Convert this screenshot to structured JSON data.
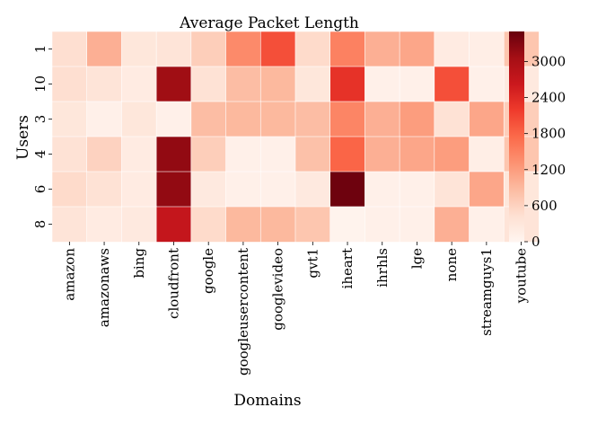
{
  "chart_data": {
    "type": "heatmap",
    "title": "Average Packet Length",
    "xlabel": "Domains",
    "ylabel": "Users",
    "x_categories": [
      "amazon",
      "amazonaws",
      "bing",
      "cloudfront",
      "google",
      "googleusercontent",
      "googlevideo",
      "gvt1",
      "iheart",
      "ihrhls",
      "lge",
      "none",
      "streamguys1",
      "youtube"
    ],
    "y_categories": [
      "1",
      "10",
      "3",
      "4",
      "6",
      "8"
    ],
    "values": [
      [
        450,
        1000,
        300,
        350,
        650,
        1400,
        2000,
        500,
        1500,
        1000,
        1100,
        200,
        150,
        750
      ],
      [
        450,
        350,
        200,
        3100,
        400,
        850,
        900,
        300,
        2300,
        100,
        100,
        2000,
        100,
        250
      ],
      [
        300,
        100,
        300,
        100,
        850,
        900,
        900,
        850,
        1450,
        1000,
        1200,
        400,
        1100,
        650
      ],
      [
        400,
        600,
        200,
        3200,
        650,
        100,
        100,
        800,
        1800,
        1000,
        1100,
        1200,
        150,
        750
      ],
      [
        500,
        400,
        200,
        3200,
        250,
        100,
        100,
        250,
        3450,
        100,
        100,
        350,
        1100,
        300
      ],
      [
        350,
        200,
        250,
        2700,
        500,
        900,
        900,
        750,
        50,
        100,
        100,
        1000,
        100,
        350
      ]
    ],
    "colorbar": {
      "min": 0,
      "max": 3500,
      "ticks": [
        0,
        600,
        1200,
        1800,
        2400,
        3000
      ],
      "colormap": "Reds"
    },
    "grid": false
  }
}
